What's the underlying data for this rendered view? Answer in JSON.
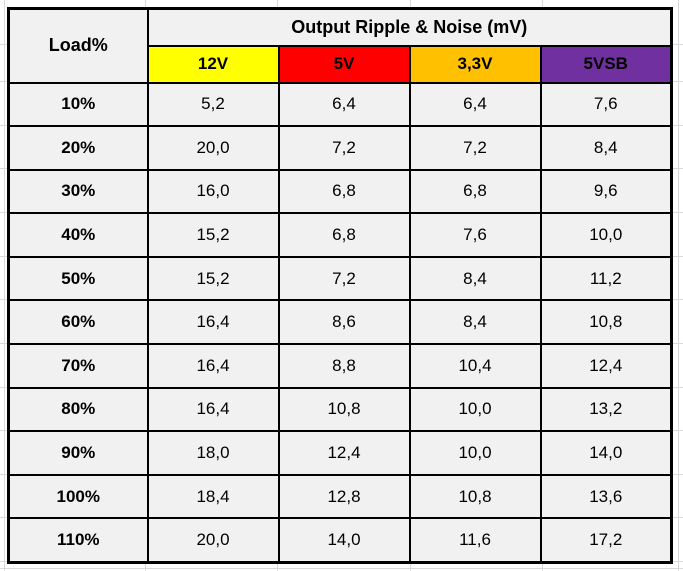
{
  "page": {
    "background": "#FFFFFF",
    "gridline_color": "#D9D9D9"
  },
  "table": {
    "corner_label": "Load%",
    "group_header": "Output Ripple & Noise (mV)",
    "cell_background": "#F1F1F1",
    "border_color": "#000000",
    "columns": [
      {
        "label": "12V",
        "color": "#FFFF00"
      },
      {
        "label": "5V",
        "color": "#FF0000"
      },
      {
        "label": "3,3V",
        "color": "#FFC000"
      },
      {
        "label": "5VSB",
        "color": "#7030A0"
      }
    ],
    "rows": [
      {
        "load": "10%",
        "values": [
          "5,2",
          "6,4",
          "6,4",
          "7,6"
        ]
      },
      {
        "load": "20%",
        "values": [
          "20,0",
          "7,2",
          "7,2",
          "8,4"
        ]
      },
      {
        "load": "30%",
        "values": [
          "16,0",
          "6,8",
          "6,8",
          "9,6"
        ]
      },
      {
        "load": "40%",
        "values": [
          "15,2",
          "6,8",
          "7,6",
          "10,0"
        ]
      },
      {
        "load": "50%",
        "values": [
          "15,2",
          "7,2",
          "8,4",
          "11,2"
        ]
      },
      {
        "load": "60%",
        "values": [
          "16,4",
          "8,6",
          "8,4",
          "10,8"
        ]
      },
      {
        "load": "70%",
        "values": [
          "16,4",
          "8,8",
          "10,4",
          "12,4"
        ]
      },
      {
        "load": "80%",
        "values": [
          "16,4",
          "10,8",
          "10,0",
          "13,2"
        ]
      },
      {
        "load": "90%",
        "values": [
          "18,0",
          "12,4",
          "10,0",
          "14,0"
        ]
      },
      {
        "load": "100%",
        "values": [
          "18,4",
          "12,8",
          "10,8",
          "13,6"
        ]
      },
      {
        "load": "110%",
        "values": [
          "20,0",
          "14,0",
          "11,6",
          "17,2"
        ]
      }
    ]
  },
  "chart_data": {
    "type": "table",
    "title": "Output Ripple & Noise (mV)",
    "xlabel": "Load%",
    "unit": "mV",
    "decimal_separator": ",",
    "categories": [
      "10%",
      "20%",
      "30%",
      "40%",
      "50%",
      "60%",
      "70%",
      "80%",
      "90%",
      "100%",
      "110%"
    ],
    "series": [
      {
        "name": "12V",
        "color": "#FFFF00",
        "values": [
          5.2,
          20.0,
          16.0,
          15.2,
          15.2,
          16.4,
          16.4,
          16.4,
          18.0,
          18.4,
          20.0
        ]
      },
      {
        "name": "5V",
        "color": "#FF0000",
        "values": [
          6.4,
          7.2,
          6.8,
          6.8,
          7.2,
          8.6,
          8.8,
          10.8,
          12.4,
          12.8,
          14.0
        ]
      },
      {
        "name": "3,3V",
        "color": "#FFC000",
        "values": [
          6.4,
          7.2,
          6.8,
          7.6,
          8.4,
          8.4,
          10.4,
          10.0,
          10.0,
          10.8,
          11.6
        ]
      },
      {
        "name": "5VSB",
        "color": "#7030A0",
        "values": [
          7.6,
          8.4,
          9.6,
          10.0,
          11.2,
          10.8,
          12.4,
          13.2,
          14.0,
          13.6,
          17.2
        ]
      }
    ]
  }
}
